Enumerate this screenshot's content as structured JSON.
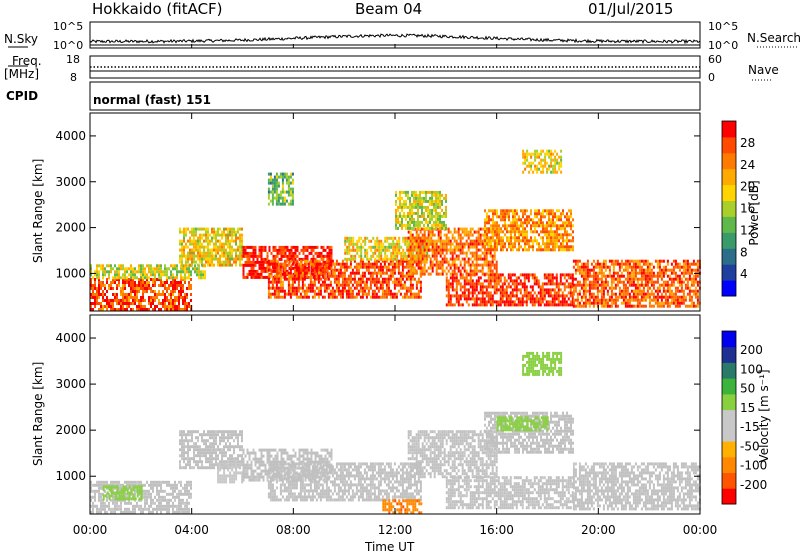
{
  "header": {
    "station": "Hokkaido (fitACF)",
    "beam": "Beam 04",
    "date": "01/Jul/2015"
  },
  "strips": {
    "nsky": {
      "label": "N.Sky",
      "tick_top": "10^5",
      "tick_bottom": "10^0",
      "right_label": "N.Search",
      "right_tick_top": "10^5",
      "right_tick_bottom": "10^0"
    },
    "freq": {
      "label_line1": "Freq.",
      "label_line2": "[MHz]",
      "tick_top": "18",
      "tick_bottom": "8",
      "right_label": "Nave",
      "right_tick_top": "60",
      "right_tick_bottom": "0"
    },
    "cpid": {
      "label": "CPID",
      "value": "normal (fast) 151"
    }
  },
  "panels": {
    "ylabel": "Slant Range [km]",
    "yticks": [
      "1000",
      "2000",
      "3000",
      "4000"
    ],
    "xticks": [
      "00:00",
      "04:00",
      "08:00",
      "12:00",
      "16:00",
      "20:00",
      "00:00"
    ],
    "xlabel": "Time UT"
  },
  "colors": {
    "power_scale": [
      "#0000ff",
      "#1f3f9f",
      "#2a6e8a",
      "#3a9a6a",
      "#5fb84a",
      "#a8cf2a",
      "#ffd400",
      "#ffaa00",
      "#ff7a00",
      "#ff4a00",
      "#ff0000"
    ],
    "velocity_scale": [
      "#ff0000",
      "#ff5500",
      "#ff8800",
      "#ffb000",
      "#c8c8c8",
      "#c8c8c8",
      "#88d040",
      "#3cb43c",
      "#2a7a6a",
      "#203090",
      "#0000ee"
    ],
    "ground_scatter": "#c0c0c0"
  },
  "chart_data": [
    {
      "type": "heatmap",
      "name": "power",
      "colorbar_label": "Power [dB]",
      "colorbar_ticks": [
        "4",
        "8",
        "12",
        "16",
        "20",
        "24",
        "28"
      ],
      "zlim": [
        0,
        30
      ],
      "xlim_hours": [
        0,
        24
      ],
      "ylim_km": [
        180,
        4500
      ],
      "regions": [
        {
          "t0": 0.0,
          "t1": 4.0,
          "r0": 200,
          "r1": 900,
          "val": 26
        },
        {
          "t0": 0.0,
          "t1": 4.5,
          "r0": 900,
          "r1": 1200,
          "val": 16
        },
        {
          "t0": 3.5,
          "t1": 6.0,
          "r0": 1200,
          "r1": 2000,
          "val": 18
        },
        {
          "t0": 6.0,
          "t1": 9.5,
          "r0": 900,
          "r1": 1600,
          "val": 29
        },
        {
          "t0": 7.0,
          "t1": 13.0,
          "r0": 500,
          "r1": 1300,
          "val": 26
        },
        {
          "t0": 10.0,
          "t1": 13.5,
          "r0": 1300,
          "r1": 1800,
          "val": 18
        },
        {
          "t0": 12.5,
          "t1": 16.0,
          "r0": 1000,
          "r1": 2000,
          "val": 24
        },
        {
          "t0": 15.5,
          "t1": 19.0,
          "r0": 1500,
          "r1": 2400,
          "val": 22
        },
        {
          "t0": 14.0,
          "t1": 19.0,
          "r0": 300,
          "r1": 1000,
          "val": 27
        },
        {
          "t0": 19.0,
          "t1": 24.0,
          "r0": 300,
          "r1": 1300,
          "val": 25
        },
        {
          "t0": 17.0,
          "t1": 18.5,
          "r0": 3200,
          "r1": 3700,
          "val": 18
        },
        {
          "t0": 12.0,
          "t1": 14.0,
          "r0": 2000,
          "r1": 2800,
          "val": 16
        },
        {
          "t0": 7.0,
          "t1": 8.0,
          "r0": 2500,
          "r1": 3200,
          "val": 12
        }
      ]
    },
    {
      "type": "heatmap",
      "name": "velocity",
      "colorbar_label": "Velocity [m s⁻¹]",
      "colorbar_ticks": [
        "-200",
        "-100",
        "-50",
        "-15",
        "15",
        "50",
        "100",
        "200"
      ],
      "zlim": [
        -250,
        250
      ],
      "xlim_hours": [
        0,
        24
      ],
      "ylim_km": [
        180,
        4500
      ],
      "regions": [
        {
          "t0": 0.0,
          "t1": 4.0,
          "r0": 200,
          "r1": 900,
          "val": 0
        },
        {
          "t0": 0.5,
          "t1": 2.0,
          "r0": 500,
          "r1": 800,
          "val": 40
        },
        {
          "t0": 3.5,
          "t1": 6.0,
          "r0": 1200,
          "r1": 2000,
          "val": 0
        },
        {
          "t0": 5.0,
          "t1": 6.0,
          "r0": 900,
          "r1": 1300,
          "val": -40
        },
        {
          "t0": 6.0,
          "t1": 9.5,
          "r0": 900,
          "r1": 1600,
          "val": 0
        },
        {
          "t0": 7.0,
          "t1": 13.0,
          "r0": 500,
          "r1": 1300,
          "val": 0
        },
        {
          "t0": 11.5,
          "t1": 13.0,
          "r0": 200,
          "r1": 500,
          "val": -150
        },
        {
          "t0": 12.5,
          "t1": 16.0,
          "r0": 1000,
          "r1": 2000,
          "val": 0
        },
        {
          "t0": 15.5,
          "t1": 19.0,
          "r0": 1500,
          "r1": 2400,
          "val": 0
        },
        {
          "t0": 16.0,
          "t1": 18.0,
          "r0": 2000,
          "r1": 2300,
          "val": 40
        },
        {
          "t0": 14.0,
          "t1": 19.0,
          "r0": 300,
          "r1": 1000,
          "val": 0
        },
        {
          "t0": 19.0,
          "t1": 24.0,
          "r0": 300,
          "r1": 1300,
          "val": 0
        },
        {
          "t0": 17.0,
          "t1": 18.5,
          "r0": 3200,
          "r1": 3700,
          "val": 40
        }
      ]
    }
  ]
}
